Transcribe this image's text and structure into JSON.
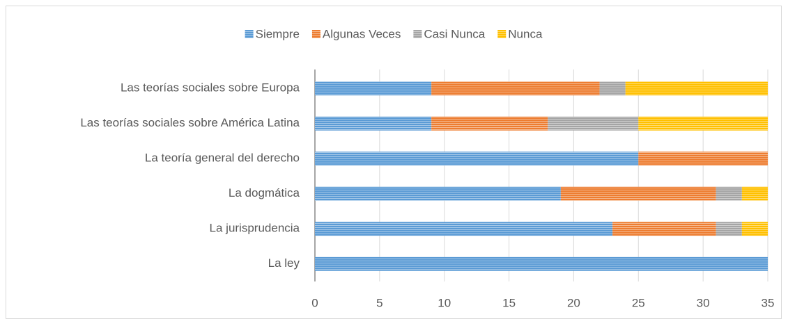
{
  "chart_data": {
    "type": "stacked-bar-horizontal",
    "categories": [
      "Las teorías sociales sobre Europa",
      "Las teorías sociales sobre América Latina",
      "La teoría general del derecho",
      "La dogmática",
      "La jurisprudencia",
      "La ley"
    ],
    "series": [
      {
        "name": "Siempre",
        "color": "#5b9bd5",
        "values": [
          9,
          9,
          25,
          19,
          23,
          35
        ]
      },
      {
        "name": "Algunas Veces",
        "color": "#ed7d31",
        "values": [
          13,
          9,
          10,
          12,
          8,
          0
        ]
      },
      {
        "name": "Casi Nunca",
        "color": "#a5a5a5",
        "values": [
          2,
          7,
          0,
          2,
          2,
          0
        ]
      },
      {
        "name": "Nunca",
        "color": "#ffc000",
        "values": [
          11,
          10,
          0,
          2,
          2,
          0
        ]
      }
    ],
    "xlim": [
      0,
      35
    ],
    "xticks": [
      0,
      5,
      10,
      15,
      20,
      25,
      30,
      35
    ],
    "grid": true,
    "legend": "top"
  }
}
